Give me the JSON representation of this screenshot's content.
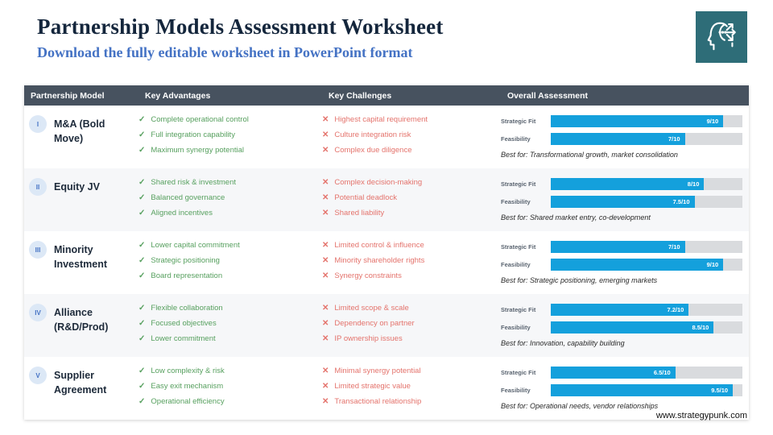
{
  "header": {
    "title": "Partnership Models Assessment Worksheet",
    "subtitle": "Download the fully editable worksheet in PowerPoint format"
  },
  "logo": {
    "icon": "strategic-head-arrows-icon",
    "background_color": "#2e6d78"
  },
  "colors": {
    "header_bar": "#47525f",
    "advantage_green": "#57a05f",
    "challenge_red": "#e4736c",
    "bar_blue": "#14a0dc",
    "bar_track": "#d9dbde",
    "title_navy": "#14263c",
    "subtitle_blue": "#4472c4"
  },
  "table": {
    "columns": [
      "Partnership Model",
      "Key Advantages",
      "Key Challenges",
      "Overall Assessment"
    ],
    "assessment_labels": {
      "strategic": "Strategic Fit",
      "feasibility": "Feasibility"
    },
    "rows": [
      {
        "numeral": "I",
        "name": "M&A (Bold Move)",
        "advantages": [
          "Complete operational control",
          "Full integration capability",
          "Maximum synergy potential"
        ],
        "challenges": [
          "Highest capital requirement",
          "Culture integration risk",
          "Complex due diligence"
        ],
        "strategic_fit": {
          "score": 9,
          "display": "9/10"
        },
        "feasibility": {
          "score": 7,
          "display": "7/10"
        },
        "best_for": "Best for: Transformational growth, market consolidation"
      },
      {
        "numeral": "II",
        "name": "Equity JV",
        "advantages": [
          "Shared risk & investment",
          "Balanced governance",
          "Aligned incentives"
        ],
        "challenges": [
          "Complex decision-making",
          "Potential deadlock",
          "Shared liability"
        ],
        "strategic_fit": {
          "score": 8,
          "display": "8/10"
        },
        "feasibility": {
          "score": 7.5,
          "display": "7.5/10"
        },
        "best_for": "Best for: Shared market entry, co-development"
      },
      {
        "numeral": "III",
        "name": "Minority Investment",
        "advantages": [
          "Lower capital commitment",
          "Strategic positioning",
          "Board representation"
        ],
        "challenges": [
          "Limited control & influence",
          "Minority shareholder rights",
          "Synergy constraints"
        ],
        "strategic_fit": {
          "score": 7,
          "display": "7/10"
        },
        "feasibility": {
          "score": 9,
          "display": "9/10"
        },
        "best_for": "Best for: Strategic positioning, emerging markets"
      },
      {
        "numeral": "IV",
        "name": "Alliance (R&D/Prod)",
        "advantages": [
          "Flexible collaboration",
          "Focused objectives",
          "Lower commitment"
        ],
        "challenges": [
          "Limited scope & scale",
          "Dependency on partner",
          "IP ownership issues"
        ],
        "strategic_fit": {
          "score": 7.2,
          "display": "7.2/10"
        },
        "feasibility": {
          "score": 8.5,
          "display": "8.5/10"
        },
        "best_for": "Best for: Innovation, capability building"
      },
      {
        "numeral": "V",
        "name": "Supplier Agreement",
        "advantages": [
          "Low complexity & risk",
          "Easy exit mechanism",
          "Operational efficiency"
        ],
        "challenges": [
          "Minimal synergy potential",
          "Limited strategic value",
          "Transactional relationship"
        ],
        "strategic_fit": {
          "score": 6.5,
          "display": "6.5/10"
        },
        "feasibility": {
          "score": 9.5,
          "display": "9.5/10"
        },
        "best_for": "Best for: Operational needs, vendor relationships"
      }
    ]
  },
  "footer": {
    "url": "www.strategypunk.com"
  }
}
